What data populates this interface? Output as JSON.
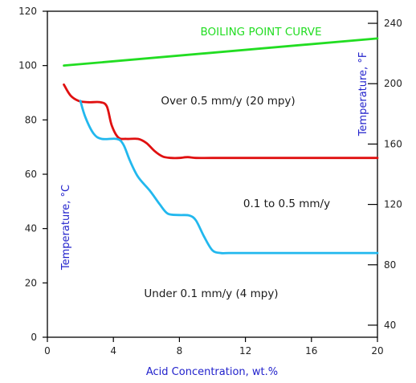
{
  "chart_data": {
    "type": "line",
    "title": "",
    "xlabel": "Acid Concentration, wt.%",
    "ylabel": "Temperature, °C",
    "y2label": "Temperature, °F",
    "xlim": [
      0,
      20
    ],
    "ylim": [
      0,
      120
    ],
    "y2lim_f": [
      32,
      248
    ],
    "x_ticks": [
      0,
      4,
      8,
      12,
      16,
      20
    ],
    "y_ticks": [
      0,
      20,
      40,
      60,
      80,
      100,
      120
    ],
    "y2_ticks": [
      40,
      80,
      120,
      160,
      200,
      240
    ],
    "grid": false,
    "colors": {
      "axis_title": "#2222cc",
      "boiling": "#22dd22",
      "red": "#e01010",
      "cyan": "#22b8ee",
      "axes": "#000000"
    },
    "series": [
      {
        "id": "boiling",
        "name": "BOILING POINT CURVE",
        "color": "#22dd22",
        "points": [
          [
            1,
            100
          ],
          [
            20,
            110
          ]
        ]
      },
      {
        "id": "red",
        "color": "#e01010",
        "points": [
          [
            1,
            93
          ],
          [
            1.4,
            89
          ],
          [
            1.9,
            87
          ],
          [
            2.5,
            86.5
          ],
          [
            3.2,
            86.5
          ],
          [
            3.6,
            85
          ],
          [
            3.9,
            78
          ],
          [
            4.3,
            73.5
          ],
          [
            4.8,
            73
          ],
          [
            5.5,
            73
          ],
          [
            6,
            71.5
          ],
          [
            6.5,
            68.5
          ],
          [
            7,
            66.5
          ],
          [
            7.5,
            66
          ],
          [
            8,
            66
          ],
          [
            8.5,
            66.3
          ],
          [
            9,
            66
          ],
          [
            10,
            66
          ],
          [
            12,
            66
          ],
          [
            16,
            66
          ],
          [
            20,
            66
          ]
        ]
      },
      {
        "id": "cyan",
        "color": "#22b8ee",
        "points": [
          [
            2,
            87
          ],
          [
            2.3,
            81
          ],
          [
            2.8,
            75
          ],
          [
            3.3,
            73
          ],
          [
            4.2,
            73
          ],
          [
            4.6,
            71
          ],
          [
            5,
            65
          ],
          [
            5.5,
            59
          ],
          [
            6.2,
            54
          ],
          [
            6.8,
            49
          ],
          [
            7.3,
            45.5
          ],
          [
            8,
            45
          ],
          [
            8.6,
            44.8
          ],
          [
            9,
            43
          ],
          [
            9.5,
            37
          ],
          [
            10,
            32
          ],
          [
            10.5,
            31
          ],
          [
            11,
            31
          ],
          [
            12,
            31
          ],
          [
            16,
            31
          ],
          [
            20,
            31
          ]
        ]
      }
    ],
    "annotations": [
      {
        "id": "over",
        "text": "Over 0.5 mm/y (20 mpy)",
        "x": 10,
        "y": 88
      },
      {
        "id": "mid",
        "text": "0.1 to 0.5 mm/y",
        "x": 15,
        "y": 50
      },
      {
        "id": "under",
        "text": "Under 0.1 mm/y (4 mpy)",
        "x": 9.5,
        "y": 16
      }
    ]
  }
}
